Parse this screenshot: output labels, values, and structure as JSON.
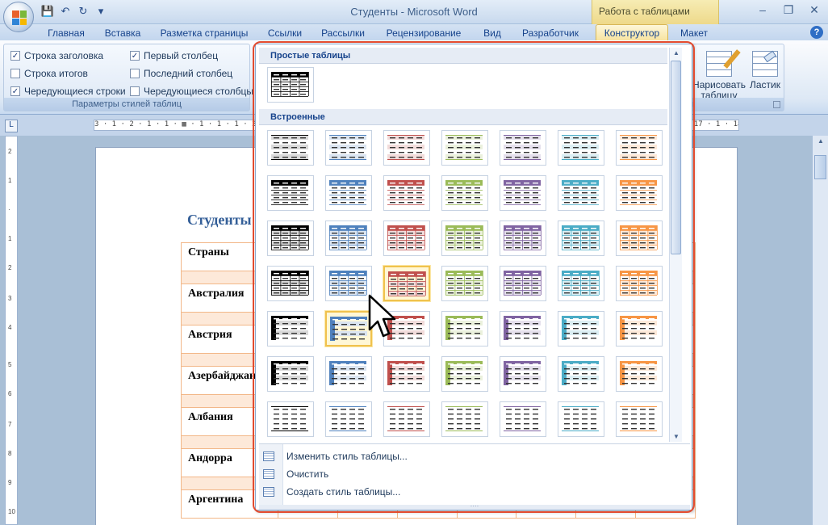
{
  "window": {
    "title": "Студенты - Microsoft Word",
    "context_group": "Работа с таблицами",
    "controls": [
      "–",
      "❐",
      "✕"
    ]
  },
  "qat": {
    "save": "💾",
    "undo": "↶",
    "redo": "↻",
    "more": "▾"
  },
  "tabs": [
    {
      "label": "Главная"
    },
    {
      "label": "Вставка"
    },
    {
      "label": "Разметка страницы"
    },
    {
      "label": "Ссылки"
    },
    {
      "label": "Рассылки"
    },
    {
      "label": "Рецензирование"
    },
    {
      "label": "Вид"
    },
    {
      "label": "Разработчик"
    },
    {
      "label": "Конструктор",
      "active": true
    },
    {
      "label": "Макет"
    }
  ],
  "help_label": "?",
  "ribbon": {
    "style_options": {
      "group_label": "Параметры стилей таблиц",
      "checkboxes": [
        {
          "label": "Строка заголовка",
          "checked": true
        },
        {
          "label": "Строка итогов",
          "checked": false
        },
        {
          "label": "Чередующиеся строки",
          "checked": true
        },
        {
          "label": "Первый столбец",
          "checked": true
        },
        {
          "label": "Последний столбец",
          "checked": false
        },
        {
          "label": "Чередующиеся столбцы",
          "checked": false
        }
      ]
    },
    "draw": {
      "draw_table": "Нарисовать таблицу",
      "eraser": "Ластик",
      "group_label_tail": "ы"
    }
  },
  "ruler": {
    "corner": "L",
    "h_left": "3 · 1 · 2 · 1 · 1 · ▦ · 1 · 1 · 1 · 2 · 1 · 3 · 1 · 4",
    "h_right": "▦ 17 · 1 · 18",
    "v_marks": [
      "2",
      "1",
      "·",
      "1",
      "2",
      "3",
      "4",
      "5",
      "6",
      "7",
      "8",
      "9",
      "10"
    ]
  },
  "document": {
    "heading": "Студенты",
    "countries": [
      "Страны",
      "Австралия",
      "Австрия",
      "Азербайджан",
      "Албания",
      "Андорра",
      "Аргентина"
    ]
  },
  "gallery": {
    "section_plain": "Простые таблицы",
    "section_builtin": "Встроенные",
    "menu": [
      {
        "label": "Изменить стиль таблицы...",
        "icon": "modify-style-icon"
      },
      {
        "label": "Очистить",
        "icon": "clear-style-icon"
      },
      {
        "label": "Создать стиль таблицы...",
        "icon": "new-style-icon"
      }
    ],
    "grip": "····",
    "scroll_up": "▲",
    "scroll_down": "▼",
    "selected_row": 3,
    "selected_col": 2,
    "hover_row": 4,
    "hover_col": 1,
    "palette": [
      "#000000",
      "#4f81bd",
      "#c0504d",
      "#9bbb59",
      "#8064a2",
      "#4bacc6",
      "#f79646"
    ],
    "tints": [
      "#d9d9d9",
      "#dbe5f1",
      "#f2dcdb",
      "#ebf1dd",
      "#e5e0ec",
      "#dbeef3",
      "#fde9d9"
    ],
    "rows": [
      {
        "style": "lines-light"
      },
      {
        "style": "header-solid"
      },
      {
        "style": "grid-banded"
      },
      {
        "style": "grid-light"
      },
      {
        "style": "first-col-dark"
      },
      {
        "style": "first-col-accent"
      },
      {
        "style": "lines-sparse"
      }
    ]
  }
}
